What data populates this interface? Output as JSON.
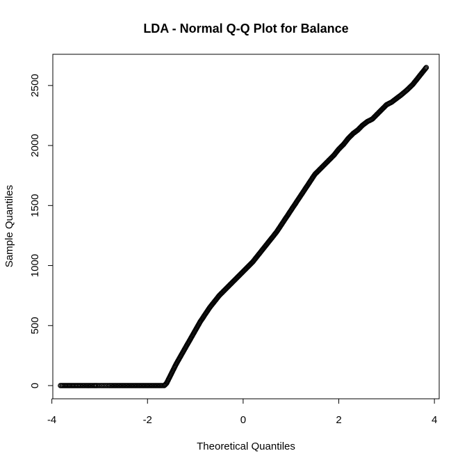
{
  "chart_data": {
    "type": "scatter",
    "title": "LDA - Normal Q-Q Plot for Balance",
    "xlabel": "Theoretical Quantiles",
    "ylabel": "Sample Quantiles",
    "xlim": [
      -3.98,
      4.1
    ],
    "ylim": [
      -110,
      2760
    ],
    "x_ticks": [
      -4,
      -2,
      0,
      2,
      4
    ],
    "y_ticks": [
      0,
      500,
      1000,
      1500,
      2000,
      2500
    ],
    "grid": false,
    "legend": "none",
    "points": [
      [
        -3.82,
        0
      ],
      [
        -3.55,
        0
      ],
      [
        -3.4,
        0
      ],
      [
        -3.3,
        0
      ],
      [
        -3.2,
        0
      ],
      [
        -3.12,
        0
      ],
      [
        -3.05,
        0
      ],
      [
        -3.0,
        0
      ],
      [
        -2.95,
        0
      ],
      [
        -2.9,
        0
      ],
      [
        -2.85,
        0
      ],
      [
        -2.8,
        0
      ],
      [
        -2.7,
        0
      ],
      [
        -2.6,
        0
      ],
      [
        -2.5,
        0
      ],
      [
        -2.4,
        0
      ],
      [
        -2.3,
        0
      ],
      [
        -2.2,
        0
      ],
      [
        -2.1,
        0
      ],
      [
        -2.0,
        0
      ],
      [
        -1.9,
        0
      ],
      [
        -1.8,
        0
      ],
      [
        -1.7,
        0
      ],
      [
        -1.65,
        0
      ],
      [
        -1.6,
        20
      ],
      [
        -1.55,
        60
      ],
      [
        -1.5,
        100
      ],
      [
        -1.4,
        180
      ],
      [
        -1.3,
        250
      ],
      [
        -1.2,
        320
      ],
      [
        -1.1,
        390
      ],
      [
        -1.0,
        460
      ],
      [
        -0.9,
        530
      ],
      [
        -0.8,
        590
      ],
      [
        -0.7,
        650
      ],
      [
        -0.6,
        700
      ],
      [
        -0.5,
        750
      ],
      [
        -0.4,
        790
      ],
      [
        -0.3,
        830
      ],
      [
        -0.2,
        870
      ],
      [
        -0.1,
        910
      ],
      [
        0.0,
        950
      ],
      [
        0.1,
        990
      ],
      [
        0.2,
        1030
      ],
      [
        0.3,
        1080
      ],
      [
        0.4,
        1130
      ],
      [
        0.5,
        1180
      ],
      [
        0.6,
        1230
      ],
      [
        0.7,
        1280
      ],
      [
        0.8,
        1340
      ],
      [
        0.9,
        1400
      ],
      [
        1.0,
        1460
      ],
      [
        1.1,
        1520
      ],
      [
        1.2,
        1580
      ],
      [
        1.3,
        1640
      ],
      [
        1.4,
        1700
      ],
      [
        1.5,
        1760
      ],
      [
        1.6,
        1800
      ],
      [
        1.7,
        1840
      ],
      [
        1.8,
        1880
      ],
      [
        1.9,
        1920
      ],
      [
        2.0,
        1970
      ],
      [
        2.1,
        2010
      ],
      [
        2.2,
        2060
      ],
      [
        2.3,
        2100
      ],
      [
        2.4,
        2130
      ],
      [
        2.5,
        2170
      ],
      [
        2.6,
        2200
      ],
      [
        2.7,
        2220
      ],
      [
        2.75,
        2240
      ],
      [
        2.8,
        2260
      ],
      [
        2.85,
        2280
      ],
      [
        2.9,
        2300
      ],
      [
        2.95,
        2320
      ],
      [
        3.0,
        2340
      ],
      [
        3.1,
        2360
      ],
      [
        3.2,
        2390
      ],
      [
        3.3,
        2420
      ],
      [
        3.42,
        2460
      ],
      [
        3.55,
        2510
      ],
      [
        3.65,
        2560
      ],
      [
        3.83,
        2650
      ]
    ]
  }
}
